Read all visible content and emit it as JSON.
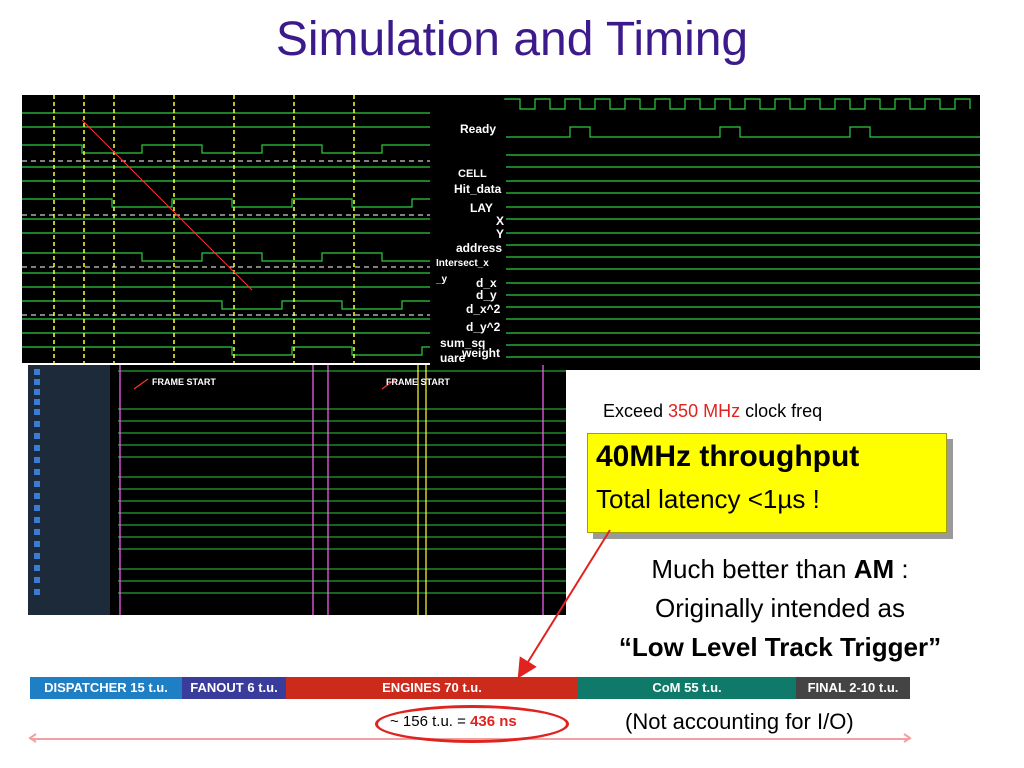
{
  "title": "Simulation and Timing",
  "signals": [
    "Ready",
    "CELL",
    "Hit_data",
    "LAY",
    "X",
    "Y",
    "address",
    "Intersect_x",
    "_y",
    "d_x",
    "d_y",
    "d_x^2",
    "d_y^2",
    "sum_sq",
    "uare",
    "weight"
  ],
  "frame_label": "FRAME START",
  "freq": {
    "prefix": "Exceed ",
    "value": "350 MHz",
    "suffix": " clock freq"
  },
  "highlight": {
    "line1": "40MHz throughput",
    "line2": "Total latency <1µs !"
  },
  "comparison": {
    "line1_prefix": "Much better than ",
    "line1_bold": "AM",
    "line1_suffix": " :",
    "line2": "Originally intended as",
    "line3": "“Low Level Track Trigger”"
  },
  "pipeline": [
    {
      "label": "DISPATCHER 15 t.u.",
      "color": "#1f7fc4"
    },
    {
      "label": "FANOUT 6 t.u.",
      "color": "#3a3c9c"
    },
    {
      "label": "ENGINES 70 t.u.",
      "color": "#cc2a1a"
    },
    {
      "label": "CoM 55 t.u.",
      "color": "#0f7a6a"
    },
    {
      "label": "FINAL 2-10 t.u.",
      "color": "#444444"
    }
  ],
  "total": {
    "prefix": "~ 156 t.u. = ",
    "ns": "436 ns"
  },
  "note": "(Not accounting for I/O)",
  "colors": {
    "title": "#3c1a8c",
    "accent_red": "#e0231f",
    "highlight_bg": "#ffff00"
  }
}
